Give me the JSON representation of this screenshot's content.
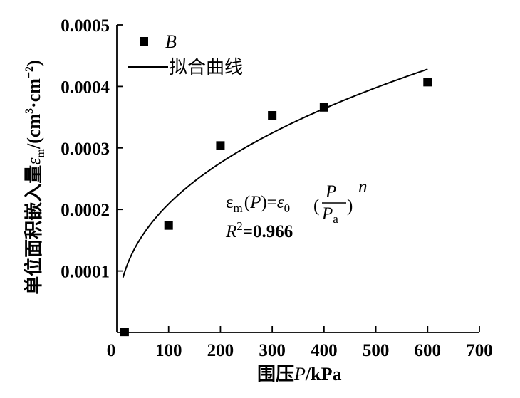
{
  "chart_data": {
    "type": "scatter",
    "xlabel": {
      "prefix": "围压",
      "var": "P",
      "unit": "/kPa"
    },
    "ylabel": {
      "prefix": "单位面积嵌入量",
      "sym": "ε",
      "sub": "m",
      "unit": "/(cm",
      "sup1": "3",
      "dot": "·cm",
      "sup2": "−2",
      "close": ")"
    },
    "xlim": [
      0,
      700
    ],
    "ylim": [
      0,
      0.0005
    ],
    "xticks": [
      0,
      100,
      200,
      300,
      400,
      500,
      600,
      700
    ],
    "yticks": [
      {
        "v": 0.0001,
        "label": "0.0001"
      },
      {
        "v": 0.0002,
        "label": "0.0002"
      },
      {
        "v": 0.0003,
        "label": "0.0003"
      },
      {
        "v": 0.0004,
        "label": "0.0004"
      },
      {
        "v": 0.0005,
        "label": "0.0005"
      }
    ],
    "series": [
      {
        "name": "B",
        "marker": "square",
        "points": [
          {
            "x": 15,
            "y": 1e-06
          },
          {
            "x": 100,
            "y": 0.000174
          },
          {
            "x": 200,
            "y": 0.000304
          },
          {
            "x": 300,
            "y": 0.000353
          },
          {
            "x": 400,
            "y": 0.000366
          },
          {
            "x": 600,
            "y": 0.000407
          }
        ]
      }
    ],
    "fit": {
      "name": "拟合曲线",
      "x_range": [
        12,
        600
      ],
      "eps0": 0.000209,
      "pa": 100,
      "n": 0.4
    },
    "grid": false,
    "legend": "top-left"
  },
  "annotations": {
    "equation": {
      "eps": "ε",
      "m": "m",
      "lp": "(",
      "P": "P",
      "rp_eq": ")=",
      "eps0": "ε",
      "zero": "0",
      "frac_num": "P",
      "frac_den": "P",
      "frac_den_sub": "a",
      "n": "n",
      "lparen": "(",
      "rparen": ")"
    },
    "r2": {
      "R": "R",
      "sup": "2",
      "val": "=0.966"
    }
  },
  "colors": {
    "axis": "#000000",
    "marker": "#000000",
    "line": "#000000"
  }
}
